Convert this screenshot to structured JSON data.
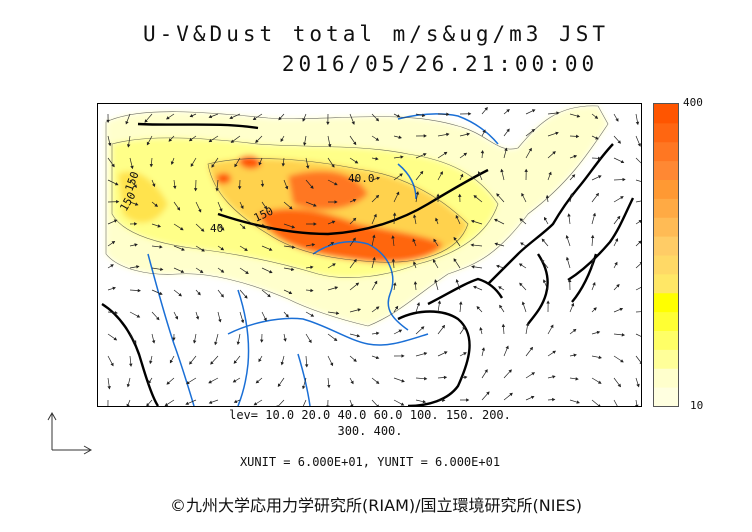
{
  "header": {
    "title_line1": "U-V&Dust total m/s&ug/m3 JST",
    "title_line2": "2016/05/26.21:00:00"
  },
  "map": {
    "contour_labels": [
      "150",
      "150",
      "40.0",
      "150",
      "40"
    ],
    "coastline_color": "#000000",
    "river_color": "#1a6fd6",
    "vector_color": "#222222"
  },
  "colorbar": {
    "max_label": "400",
    "min_label": "10",
    "colors": [
      "#ffffe0",
      "#ffffcc",
      "#ffff99",
      "#ffff66",
      "#ffff33",
      "#ffff00",
      "#ffe766",
      "#ffd966",
      "#ffcc66",
      "#ffbb55",
      "#ffaa44",
      "#ff9933",
      "#ff8833",
      "#ff7722",
      "#ff6611",
      "#ff5500"
    ]
  },
  "footer": {
    "levels_line1": "lev= 10.0 20.0 40.0 60.0 100. 150. 200.",
    "levels_line2": "300. 400.",
    "units_line": "XUNIT = 6.000E+01, YUNIT = 6.000E+01",
    "copyright": "©九州大学応用力学研究所(RIAM)/国立環境研究所(NIES)"
  }
}
